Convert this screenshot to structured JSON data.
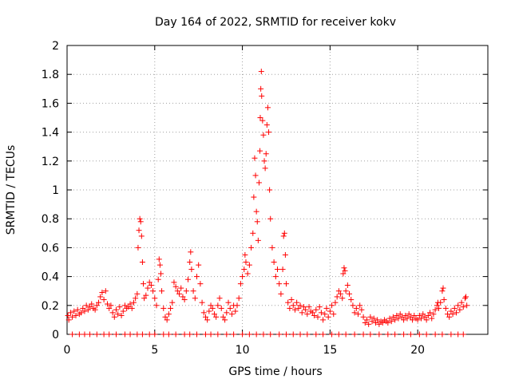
{
  "chart_data": {
    "type": "scatter",
    "title": "Day 164 of 2022, SRMTID for receiver kokv",
    "xlabel": "GPS time / hours",
    "ylabel": "SRMTID / TECUs",
    "xlim": [
      0,
      24
    ],
    "ylim": [
      0,
      2
    ],
    "xticks": [
      0,
      5,
      10,
      15,
      20
    ],
    "yticks": [
      0,
      0.2,
      0.4,
      0.6,
      0.8,
      1,
      1.2,
      1.4,
      1.6,
      1.8,
      2
    ],
    "grid": true,
    "marker": "+",
    "color": "#ff0000",
    "series": [
      {
        "name": "SRMTID",
        "points": [
          [
            0.05,
            0.13
          ],
          [
            0.1,
            0.1
          ],
          [
            0.2,
            0.15
          ],
          [
            0.3,
            0.12
          ],
          [
            0.4,
            0.16
          ],
          [
            0.5,
            0.13
          ],
          [
            0.6,
            0.17
          ],
          [
            0.7,
            0.14
          ],
          [
            0.8,
            0.15
          ],
          [
            0.9,
            0.18
          ],
          [
            1.0,
            0.16
          ],
          [
            1.1,
            0.2
          ],
          [
            1.2,
            0.17
          ],
          [
            1.3,
            0.19
          ],
          [
            1.4,
            0.21
          ],
          [
            1.5,
            0.18
          ],
          [
            1.6,
            0.17
          ],
          [
            1.7,
            0.2
          ],
          [
            1.8,
            0.22
          ],
          [
            1.9,
            0.26
          ],
          [
            2.0,
            0.29
          ],
          [
            2.1,
            0.24
          ],
          [
            2.2,
            0.3
          ],
          [
            2.3,
            0.21
          ],
          [
            2.4,
            0.18
          ],
          [
            2.5,
            0.2
          ],
          [
            2.6,
            0.15
          ],
          [
            2.7,
            0.12
          ],
          [
            2.8,
            0.17
          ],
          [
            2.9,
            0.14
          ],
          [
            3.0,
            0.19
          ],
          [
            3.1,
            0.13
          ],
          [
            3.2,
            0.16
          ],
          [
            3.3,
            0.2
          ],
          [
            3.4,
            0.18
          ],
          [
            3.5,
            0.19
          ],
          [
            3.6,
            0.21
          ],
          [
            3.7,
            0.18
          ],
          [
            3.8,
            0.22
          ],
          [
            3.9,
            0.25
          ],
          [
            4.0,
            0.28
          ],
          [
            4.05,
            0.6
          ],
          [
            4.1,
            0.72
          ],
          [
            4.15,
            0.8
          ],
          [
            4.2,
            0.78
          ],
          [
            4.25,
            0.68
          ],
          [
            4.3,
            0.5
          ],
          [
            4.35,
            0.35
          ],
          [
            4.4,
            0.25
          ],
          [
            4.5,
            0.27
          ],
          [
            4.6,
            0.32
          ],
          [
            4.7,
            0.36
          ],
          [
            4.8,
            0.34
          ],
          [
            4.9,
            0.3
          ],
          [
            5.0,
            0.25
          ],
          [
            5.1,
            0.2
          ],
          [
            5.2,
            0.38
          ],
          [
            5.25,
            0.52
          ],
          [
            5.3,
            0.48
          ],
          [
            5.35,
            0.42
          ],
          [
            5.4,
            0.3
          ],
          [
            5.5,
            0.18
          ],
          [
            5.6,
            0.12
          ],
          [
            5.7,
            0.1
          ],
          [
            5.8,
            0.14
          ],
          [
            5.9,
            0.18
          ],
          [
            6.0,
            0.22
          ],
          [
            6.1,
            0.36
          ],
          [
            6.2,
            0.33
          ],
          [
            6.3,
            0.3
          ],
          [
            6.4,
            0.28
          ],
          [
            6.5,
            0.32
          ],
          [
            6.6,
            0.26
          ],
          [
            6.7,
            0.24
          ],
          [
            6.8,
            0.3
          ],
          [
            6.9,
            0.38
          ],
          [
            7.0,
            0.5
          ],
          [
            7.05,
            0.57
          ],
          [
            7.1,
            0.45
          ],
          [
            7.2,
            0.3
          ],
          [
            7.3,
            0.25
          ],
          [
            7.4,
            0.4
          ],
          [
            7.5,
            0.48
          ],
          [
            7.6,
            0.35
          ],
          [
            7.7,
            0.22
          ],
          [
            7.8,
            0.15
          ],
          [
            7.9,
            0.12
          ],
          [
            8.0,
            0.1
          ],
          [
            8.1,
            0.16
          ],
          [
            8.2,
            0.2
          ],
          [
            8.3,
            0.18
          ],
          [
            8.4,
            0.14
          ],
          [
            8.5,
            0.12
          ],
          [
            8.6,
            0.2
          ],
          [
            8.7,
            0.25
          ],
          [
            8.8,
            0.18
          ],
          [
            8.9,
            0.12
          ],
          [
            9.0,
            0.1
          ],
          [
            9.1,
            0.15
          ],
          [
            9.2,
            0.22
          ],
          [
            9.3,
            0.18
          ],
          [
            9.4,
            0.14
          ],
          [
            9.5,
            0.2
          ],
          [
            9.6,
            0.16
          ],
          [
            9.7,
            0.2
          ],
          [
            9.8,
            0.25
          ],
          [
            9.9,
            0.35
          ],
          [
            10.0,
            0.4
          ],
          [
            10.1,
            0.45
          ],
          [
            10.15,
            0.55
          ],
          [
            10.2,
            0.5
          ],
          [
            10.3,
            0.42
          ],
          [
            10.4,
            0.48
          ],
          [
            10.5,
            0.6
          ],
          [
            10.6,
            0.7
          ],
          [
            10.65,
            0.95
          ],
          [
            10.7,
            1.22
          ],
          [
            10.75,
            1.1
          ],
          [
            10.8,
            0.85
          ],
          [
            10.85,
            0.78
          ],
          [
            10.9,
            0.65
          ],
          [
            10.95,
            1.05
          ],
          [
            11.0,
            1.27
          ],
          [
            11.02,
            1.5
          ],
          [
            11.05,
            1.7
          ],
          [
            11.08,
            1.82
          ],
          [
            11.1,
            1.65
          ],
          [
            11.15,
            1.48
          ],
          [
            11.2,
            1.38
          ],
          [
            11.25,
            1.2
          ],
          [
            11.3,
            1.15
          ],
          [
            11.35,
            1.25
          ],
          [
            11.4,
            1.45
          ],
          [
            11.45,
            1.57
          ],
          [
            11.5,
            1.4
          ],
          [
            11.55,
            1.0
          ],
          [
            11.6,
            0.8
          ],
          [
            11.7,
            0.6
          ],
          [
            11.8,
            0.5
          ],
          [
            11.9,
            0.4
          ],
          [
            12.0,
            0.45
          ],
          [
            12.1,
            0.35
          ],
          [
            12.2,
            0.28
          ],
          [
            12.3,
            0.45
          ],
          [
            12.35,
            0.68
          ],
          [
            12.4,
            0.7
          ],
          [
            12.45,
            0.55
          ],
          [
            12.5,
            0.35
          ],
          [
            12.6,
            0.22
          ],
          [
            12.7,
            0.18
          ],
          [
            12.8,
            0.24
          ],
          [
            12.9,
            0.2
          ],
          [
            13.0,
            0.17
          ],
          [
            13.1,
            0.22
          ],
          [
            13.2,
            0.18
          ],
          [
            13.3,
            0.2
          ],
          [
            13.4,
            0.15
          ],
          [
            13.5,
            0.19
          ],
          [
            13.6,
            0.17
          ],
          [
            13.7,
            0.14
          ],
          [
            13.8,
            0.19
          ],
          [
            13.9,
            0.16
          ],
          [
            14.0,
            0.15
          ],
          [
            14.1,
            0.13
          ],
          [
            14.2,
            0.17
          ],
          [
            14.3,
            0.12
          ],
          [
            14.4,
            0.19
          ],
          [
            14.5,
            0.15
          ],
          [
            14.6,
            0.1
          ],
          [
            14.7,
            0.14
          ],
          [
            14.8,
            0.18
          ],
          [
            14.9,
            0.12
          ],
          [
            15.0,
            0.16
          ],
          [
            15.1,
            0.2
          ],
          [
            15.2,
            0.14
          ],
          [
            15.3,
            0.22
          ],
          [
            15.4,
            0.26
          ],
          [
            15.5,
            0.3
          ],
          [
            15.6,
            0.28
          ],
          [
            15.7,
            0.25
          ],
          [
            15.75,
            0.42
          ],
          [
            15.8,
            0.46
          ],
          [
            15.85,
            0.44
          ],
          [
            15.9,
            0.3
          ],
          [
            16.0,
            0.34
          ],
          [
            16.1,
            0.28
          ],
          [
            16.2,
            0.24
          ],
          [
            16.3,
            0.2
          ],
          [
            16.4,
            0.15
          ],
          [
            16.5,
            0.18
          ],
          [
            16.6,
            0.14
          ],
          [
            16.7,
            0.2
          ],
          [
            16.8,
            0.17
          ],
          [
            16.9,
            0.12
          ],
          [
            17.0,
            0.08
          ],
          [
            17.1,
            0.1
          ],
          [
            17.2,
            0.07
          ],
          [
            17.3,
            0.12
          ],
          [
            17.4,
            0.09
          ],
          [
            17.5,
            0.11
          ],
          [
            17.6,
            0.08
          ],
          [
            17.7,
            0.1
          ],
          [
            17.8,
            0.07
          ],
          [
            17.9,
            0.09
          ],
          [
            18.0,
            0.08
          ],
          [
            18.1,
            0.1
          ],
          [
            18.2,
            0.09
          ],
          [
            18.3,
            0.08
          ],
          [
            18.4,
            0.11
          ],
          [
            18.5,
            0.09
          ],
          [
            18.6,
            0.12
          ],
          [
            18.7,
            0.1
          ],
          [
            18.8,
            0.13
          ],
          [
            18.9,
            0.11
          ],
          [
            19.0,
            0.14
          ],
          [
            19.1,
            0.12
          ],
          [
            19.2,
            0.1
          ],
          [
            19.3,
            0.13
          ],
          [
            19.4,
            0.11
          ],
          [
            19.5,
            0.14
          ],
          [
            19.6,
            0.12
          ],
          [
            19.7,
            0.1
          ],
          [
            19.8,
            0.13
          ],
          [
            19.9,
            0.11
          ],
          [
            20.0,
            0.1
          ],
          [
            20.1,
            0.13
          ],
          [
            20.2,
            0.11
          ],
          [
            20.3,
            0.14
          ],
          [
            20.4,
            0.12
          ],
          [
            20.5,
            0.1
          ],
          [
            20.6,
            0.13
          ],
          [
            20.7,
            0.15
          ],
          [
            20.8,
            0.11
          ],
          [
            20.9,
            0.14
          ],
          [
            21.0,
            0.17
          ],
          [
            21.1,
            0.2
          ],
          [
            21.15,
            0.22
          ],
          [
            21.2,
            0.18
          ],
          [
            21.3,
            0.22
          ],
          [
            21.4,
            0.3
          ],
          [
            21.45,
            0.32
          ],
          [
            21.5,
            0.24
          ],
          [
            21.6,
            0.18
          ],
          [
            21.7,
            0.14
          ],
          [
            21.8,
            0.12
          ],
          [
            21.9,
            0.16
          ],
          [
            22.0,
            0.14
          ],
          [
            22.1,
            0.18
          ],
          [
            22.2,
            0.15
          ],
          [
            22.3,
            0.2
          ],
          [
            22.4,
            0.17
          ],
          [
            22.5,
            0.22
          ],
          [
            22.6,
            0.19
          ],
          [
            22.7,
            0.25
          ],
          [
            22.75,
            0.26
          ],
          [
            22.8,
            0.2
          ]
        ]
      }
    ],
    "baseline_hours": [
      0.3,
      0.7,
      1.0,
      1.3,
      1.7,
      2.1,
      2.4,
      2.8,
      3.3,
      3.6,
      4.0,
      4.3,
      4.7,
      5.0,
      5.5,
      5.8,
      6.2,
      6.7,
      7.0,
      7.4,
      7.9,
      8.2,
      8.6,
      9.1,
      9.5,
      10.0,
      10.4,
      10.8,
      11.2,
      11.6,
      12.1,
      12.5,
      12.9,
      13.3,
      13.7,
      14.2,
      14.6,
      15.1,
      15.5,
      15.9,
      16.4,
      16.9,
      17.3,
      17.8,
      18.3,
      18.7,
      19.2,
      19.6,
      20.1,
      20.5,
      21.0,
      21.4,
      21.9,
      22.3,
      22.6
    ]
  }
}
